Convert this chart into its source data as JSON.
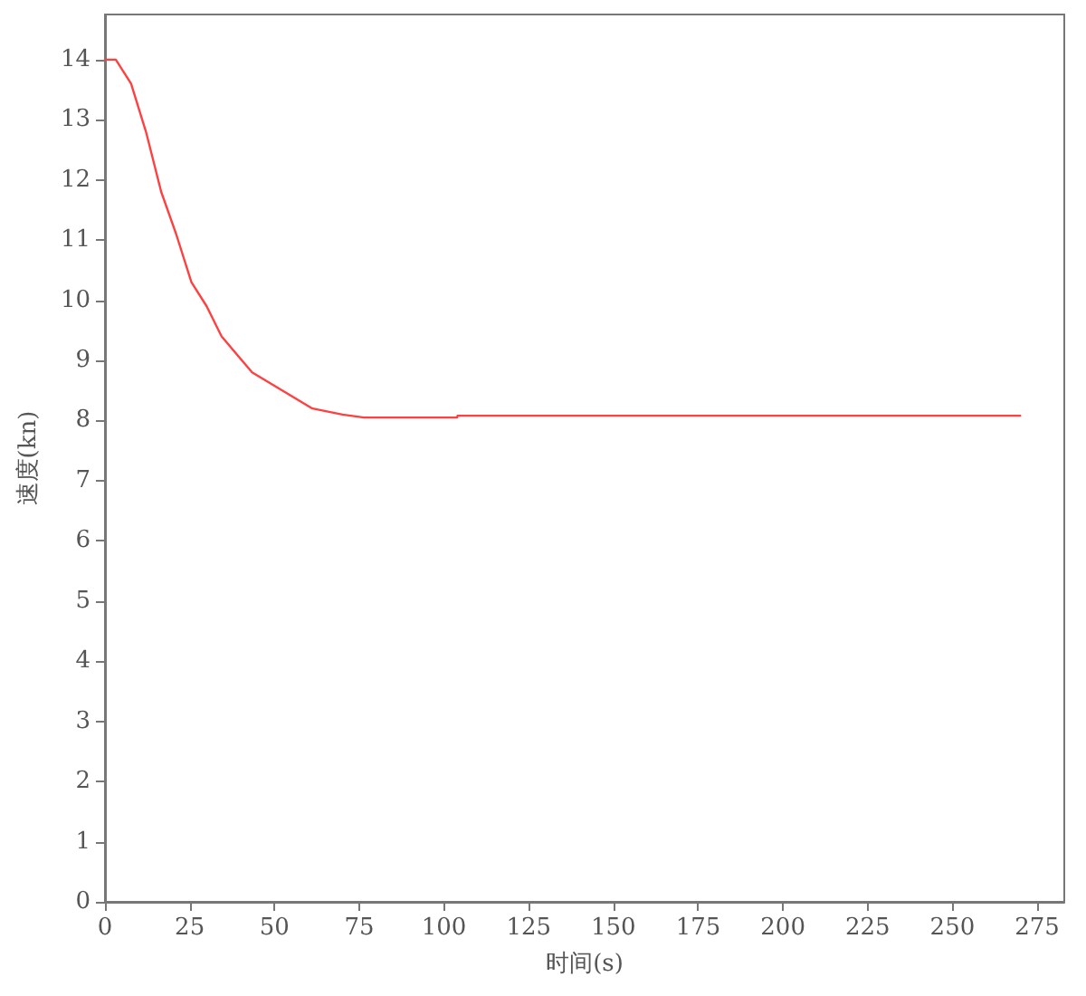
{
  "chart_data": {
    "type": "line",
    "xlabel": "时间(s)",
    "ylabel": "速度(kn)",
    "x": [
      0,
      3.2,
      7.7,
      12.1,
      16.6,
      21,
      25.5,
      30,
      34.4,
      43.4,
      52.3,
      61.2,
      70.1,
      76.4,
      103.9,
      104,
      270
    ],
    "series": [
      {
        "color": "#ff4040",
        "values": [
          14,
          14,
          13.6,
          12.8,
          11.8,
          11.1,
          10.3,
          9.9,
          9.4,
          8.8,
          8.5,
          8.2,
          8.1,
          8.05,
          8.05,
          8.08,
          8.08
        ]
      }
    ],
    "xlim": [
      0,
      283
    ],
    "ylim": [
      0,
      14.75
    ],
    "xticks": [
      0,
      25,
      50,
      75,
      100,
      125,
      150,
      175,
      200,
      225,
      250,
      275
    ],
    "yticks": [
      0,
      1,
      2,
      3,
      4,
      5,
      6,
      7,
      8,
      9,
      10,
      11,
      12,
      13,
      14
    ],
    "grid": false,
    "marker": "none",
    "line_style": "solid"
  }
}
